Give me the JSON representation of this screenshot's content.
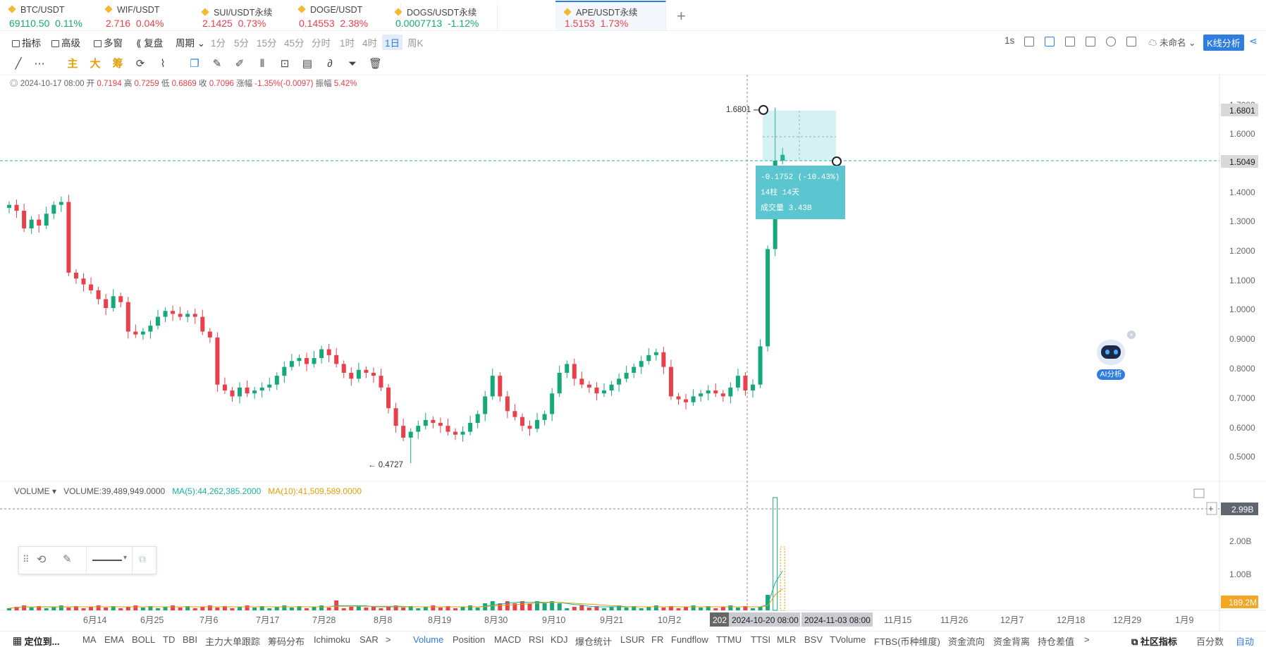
{
  "tabs": [
    {
      "symbol": "BTC/USDT",
      "price": "69110.50",
      "change": "0.11%",
      "dir": "up"
    },
    {
      "symbol": "WIF/USDT",
      "price": "2.716",
      "change": "0.04%",
      "dir": "down"
    },
    {
      "symbol": "SUI/USDT永续",
      "price": "2.1425",
      "change": "0.73%",
      "dir": "down"
    },
    {
      "symbol": "DOGE/USDT",
      "price": "0.14553",
      "change": "2.38%",
      "dir": "down"
    },
    {
      "symbol": "DOGS/USDT永续",
      "price": "0.0007713",
      "change": "-1.12%",
      "dir": "up"
    },
    {
      "symbol": "APE/USDT永续",
      "price": "1.5153",
      "change": "1.73%",
      "dir": "down"
    }
  ],
  "toolbar": {
    "indicators": "指标",
    "advanced": "高级",
    "multi": "多窗",
    "replay": "复盘",
    "period": "周期 ⌄",
    "intervals": [
      "1分",
      "5分",
      "15分",
      "45分",
      "分时",
      "1时",
      "4时",
      "1日",
      "周K"
    ],
    "selected_interval": "1日",
    "seconds": "1s",
    "unnamed": "未命名 ⌄",
    "kline_analysis": "K线分析"
  },
  "drawtools": {
    "main": "主",
    "big": "大",
    "chips": "筹"
  },
  "ohlc": {
    "date": "2024-10-17 08:00",
    "open_label": "开",
    "open": "0.7194",
    "high_label": "高",
    "high": "0.7259",
    "low_label": "低",
    "low": "0.6869",
    "close_label": "收",
    "close": "0.7096",
    "chg_label": "涨幅",
    "chg": "-1.35%(-0.0097)",
    "amp_label": "振幅",
    "amp": "5.42%"
  },
  "price_axis": {
    "ticks": [
      "1.7000",
      "1.6000",
      "1.4000",
      "1.3000",
      "1.2000",
      "1.1000",
      "1.0000",
      "0.9000",
      "0.8000",
      "0.7000",
      "0.6000",
      "0.5000"
    ],
    "high_tag": "1.6801",
    "current_tag": "1.5049"
  },
  "annotations": {
    "high": "1.6801",
    "low": "← 0.4727"
  },
  "measure": {
    "line1": "-0.1752 (-10.43%)",
    "line2": "14柱 14天",
    "line3": "成交量 3.43B"
  },
  "volume": {
    "label": "VOLUME ▾",
    "value": "VOLUME:39,489,949.0000",
    "ma5": "MA(5):44,262,385.2000",
    "ma10": "MA(10):41,509,589.0000",
    "axis": [
      "2.00B",
      "1.00B"
    ],
    "crosshair_tag": "2.99B",
    "current_tag": "189.2M"
  },
  "time_axis": {
    "labels": [
      "6月14",
      "6月25",
      "7月6",
      "7月17",
      "7月28",
      "8月8",
      "8月19",
      "8月30",
      "9月10",
      "9月21",
      "10月2",
      "11月15",
      "11月26",
      "12月7",
      "12月18",
      "12月29",
      "1月9"
    ],
    "cursor_start": "2024-10-20 08:00",
    "cursor_end": "2024-11-03 08:00",
    "cursor_stub": "202"
  },
  "bottombar": {
    "locate": "定位到...",
    "main_inds": [
      "MA",
      "EMA",
      "BOLL",
      "TD",
      "BBI",
      "主力大单跟踪",
      "筹码分布",
      "Ichimoku",
      "SAR",
      ">"
    ],
    "sub_inds": [
      "Volume",
      "Position",
      "MACD",
      "RSI",
      "KDJ",
      "爆仓统计",
      "LSUR",
      "FR",
      "Fundflow",
      "TTMU",
      "TTSI",
      "MLR",
      "BSV",
      "TVolume",
      "FTBS(币种维度)",
      "资金流向",
      "资金背离",
      "持仓差值",
      ">"
    ],
    "community": "社区指标",
    "pct": "百分数",
    "auto": "自动"
  },
  "ai": {
    "label": "AI分析"
  },
  "colors": {
    "up": "#17a87a",
    "down": "#e8414c",
    "accent": "#2f7de1",
    "measure": "#5cc6d0"
  },
  "chart_data": {
    "type": "candlestick",
    "symbol": "APE/USDT永续",
    "interval": "1日",
    "high_marker": 1.6801,
    "low_marker": 0.4727,
    "last_price": 1.5049,
    "closes": [
      1.35,
      1.33,
      1.27,
      1.3,
      1.28,
      1.32,
      1.35,
      1.36,
      1.12,
      1.1,
      1.08,
      1.06,
      1.03,
      1.0,
      1.04,
      1.02,
      0.92,
      0.91,
      0.92,
      0.94,
      0.97,
      0.99,
      0.98,
      0.97,
      0.98,
      0.97,
      0.92,
      0.9,
      0.74,
      0.72,
      0.7,
      0.73,
      0.71,
      0.72,
      0.73,
      0.74,
      0.77,
      0.8,
      0.82,
      0.83,
      0.81,
      0.83,
      0.86,
      0.84,
      0.81,
      0.78,
      0.76,
      0.79,
      0.78,
      0.77,
      0.73,
      0.66,
      0.6,
      0.56,
      0.58,
      0.6,
      0.62,
      0.61,
      0.6,
      0.58,
      0.57,
      0.58,
      0.61,
      0.64,
      0.7,
      0.77,
      0.7,
      0.65,
      0.63,
      0.6,
      0.59,
      0.62,
      0.64,
      0.71,
      0.78,
      0.81,
      0.76,
      0.74,
      0.73,
      0.71,
      0.72,
      0.74,
      0.76,
      0.78,
      0.8,
      0.82,
      0.84,
      0.85,
      0.8,
      0.7,
      0.69,
      0.68,
      0.7,
      0.71,
      0.72,
      0.71,
      0.7,
      0.73,
      0.77,
      0.72,
      0.74,
      0.87,
      1.2,
      1.5,
      1.52
    ]
  }
}
